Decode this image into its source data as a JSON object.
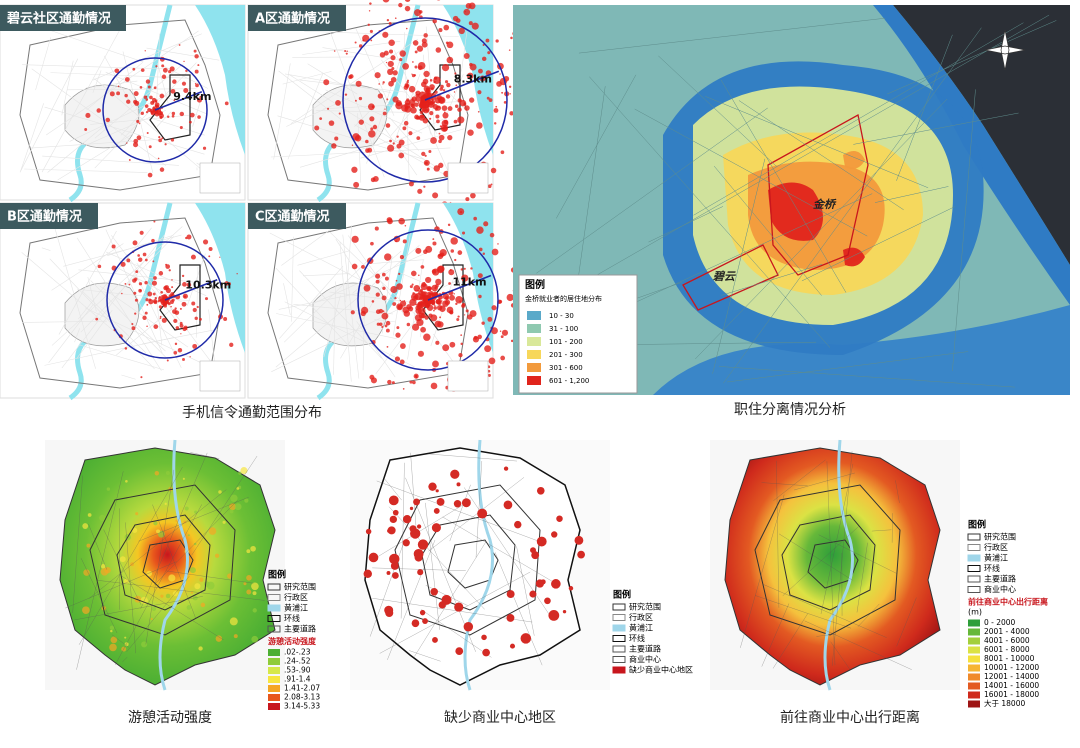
{
  "commute": {
    "panels": [
      {
        "title": "碧云社区通勤情况",
        "distance": "9.4km"
      },
      {
        "title": "A区通勤情况",
        "distance": "8.3km"
      },
      {
        "title": "B区通勤情况",
        "distance": "10.3km"
      },
      {
        "title": "C区通勤情况",
        "distance": "11km"
      }
    ],
    "caption": "手机信令通勤范围分布"
  },
  "jobs_housing": {
    "labels": [
      "金桥",
      "碧云"
    ],
    "legend": {
      "title": "图例",
      "subtitle": "金桥就业者的居住地分布",
      "items": [
        {
          "label": "10 - 30",
          "color": "#5aa9c9"
        },
        {
          "label": "31 - 100",
          "color": "#8fc9b0"
        },
        {
          "label": "101 - 200",
          "color": "#d9e89a"
        },
        {
          "label": "201 - 300",
          "color": "#f7d75a"
        },
        {
          "label": "301 - 600",
          "color": "#f29a3c"
        },
        {
          "label": "601 - 1,200",
          "color": "#e0241c"
        }
      ]
    },
    "caption": "职住分离情况分析"
  },
  "recreation": {
    "legend": {
      "title": "图例",
      "items": [
        "研究范围",
        "行政区",
        "黄浦江",
        "环线",
        "主要道路"
      ],
      "scale_title": "游憩活动强度",
      "scale": [
        {
          "label": ".02-.23",
          "color": "#4caf33"
        },
        {
          "label": ".24-.52",
          "color": "#8fcc3a"
        },
        {
          "label": ".53-.90",
          "color": "#d6e84a"
        },
        {
          "label": ".91-1.4",
          "color": "#f7e640"
        },
        {
          "label": "1.41-2.07",
          "color": "#f5a623"
        },
        {
          "label": "2.08-3.13",
          "color": "#e8571c"
        },
        {
          "label": "3.14-5.33",
          "color": "#c8161d"
        }
      ]
    },
    "caption": "游憩活动强度"
  },
  "commercial_gap": {
    "legend": {
      "title": "图例",
      "items": [
        "研究范围",
        "行政区",
        "黄浦江",
        "环线",
        "主要道路",
        "商业中心",
        "缺少商业中心地区"
      ]
    },
    "caption": "缺少商业中心地区"
  },
  "commercial_distance": {
    "legend": {
      "title": "图例",
      "items": [
        "研究范围",
        "行政区",
        "黄浦江",
        "环线",
        "主要道路",
        "商业中心"
      ],
      "scale_title": "前往商业中心出行距离",
      "scale_unit": "(m)",
      "scale": [
        {
          "label": "0 - 2000",
          "color": "#2e9e3a"
        },
        {
          "label": "2001 - 4000",
          "color": "#66b83a"
        },
        {
          "label": "4001 - 6000",
          "color": "#a3cf3c"
        },
        {
          "label": "6001 - 8000",
          "color": "#dbe244"
        },
        {
          "label": "8001 - 10000",
          "color": "#f5e13d"
        },
        {
          "label": "10001 - 12000",
          "color": "#f6b532"
        },
        {
          "label": "12001 - 14000",
          "color": "#f08a2a"
        },
        {
          "label": "14001 - 16000",
          "color": "#e35a22"
        },
        {
          "label": "16001 - 18000",
          "color": "#cf2a1c"
        },
        {
          "label": "大于 18000",
          "color": "#9e1414"
        }
      ]
    },
    "caption": "前往商业中心出行距离"
  }
}
